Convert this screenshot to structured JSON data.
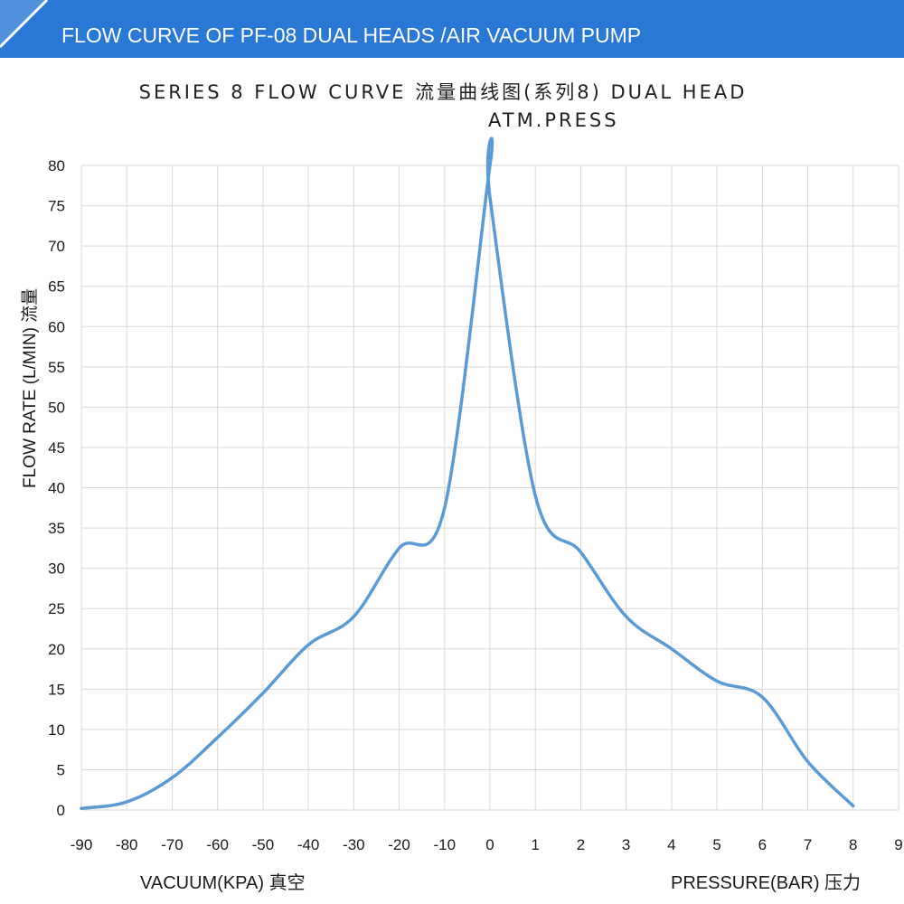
{
  "banner": {
    "title": "FLOW CURVE OF PF-08 DUAL HEADS /AIR VACUUM PUMP",
    "color": "#2a78d6"
  },
  "chart_data": {
    "type": "line",
    "title": "SERIES 8 FLOW CURVE 流量曲线图(系列8) DUAL HEAD",
    "subtitle": "ATM.PRESS",
    "ylabel": "FLOW RATE (L/MIN) 流量",
    "xlabel_left": "VACUUM(KPA) 真空",
    "xlabel_right": "PRESSURE(BAR) 压力",
    "ylim": [
      0,
      80
    ],
    "yticks": [
      "0",
      "5",
      "10",
      "15",
      "20",
      "25",
      "30",
      "35",
      "40",
      "45",
      "50",
      "55",
      "60",
      "65",
      "70",
      "75",
      "80"
    ],
    "xticks": [
      "-90",
      "-80",
      "-70",
      "-60",
      "-50",
      "-40",
      "-30",
      "-20",
      "-10",
      "0",
      "1",
      "2",
      "3",
      "4",
      "5",
      "6",
      "7",
      "8",
      "9"
    ],
    "grid": true,
    "line_color": "#5b9bd5",
    "series": [
      {
        "x": [
          "-90",
          "-80",
          "-70",
          "-60",
          "-50",
          "-40",
          "-30",
          "-20",
          "-10",
          "0",
          "0",
          "1",
          "2",
          "3",
          "4",
          "5",
          "6",
          "7",
          "8"
        ],
        "values": [
          0.2,
          1,
          4,
          9,
          14.5,
          20.5,
          24,
          32.5,
          37.5,
          80,
          76,
          39,
          32,
          24,
          20,
          16,
          14,
          6,
          0.5
        ]
      }
    ]
  }
}
